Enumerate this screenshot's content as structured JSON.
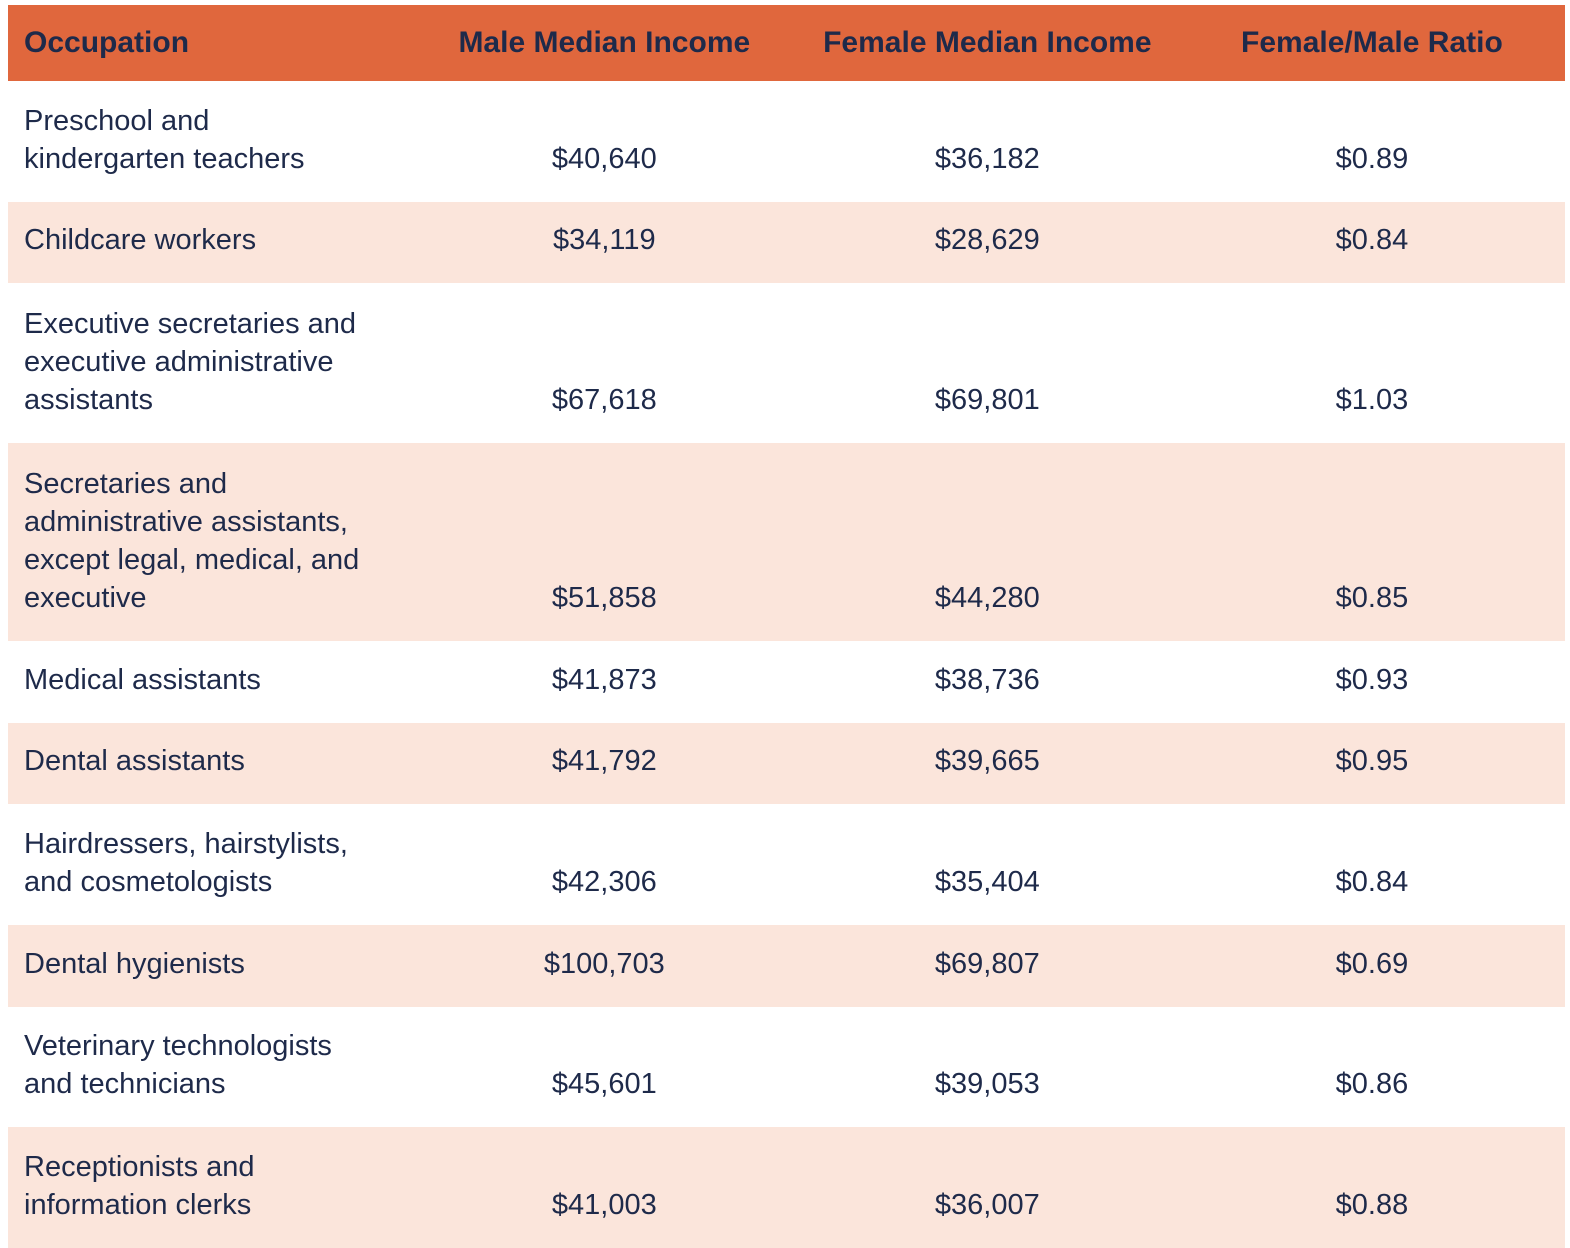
{
  "colors": {
    "header_bg": "#E0673D",
    "row_bg": "#FFFFFF",
    "row_alt_bg": "#FBE5DB",
    "text": "#1E2A4A"
  },
  "chart_data": {
    "type": "table",
    "columns": [
      "Occupation",
      "Male Median Income",
      "Female Median Income",
      "Female/Male Ratio"
    ],
    "rows": [
      {
        "occupation": "Preschool and\nkindergarten teachers",
        "male_median_income": "$40,640",
        "female_median_income": "$36,182",
        "female_male_ratio": "$0.89"
      },
      {
        "occupation": "Childcare workers",
        "male_median_income": "$34,119",
        "female_median_income": "$28,629",
        "female_male_ratio": "$0.84"
      },
      {
        "occupation": "Executive secretaries and\nexecutive administrative\nassistants",
        "male_median_income": "$67,618",
        "female_median_income": "$69,801",
        "female_male_ratio": "$1.03"
      },
      {
        "occupation": "Secretaries and\nadministrative assistants,\nexcept legal, medical, and\nexecutive",
        "male_median_income": "$51,858",
        "female_median_income": "$44,280",
        "female_male_ratio": "$0.85"
      },
      {
        "occupation": "Medical assistants",
        "male_median_income": "$41,873",
        "female_median_income": "$38,736",
        "female_male_ratio": "$0.93"
      },
      {
        "occupation": "Dental assistants",
        "male_median_income": "$41,792",
        "female_median_income": "$39,665",
        "female_male_ratio": "$0.95"
      },
      {
        "occupation": "Hairdressers, hairstylists,\nand cosmetologists",
        "male_median_income": "$42,306",
        "female_median_income": "$35,404",
        "female_male_ratio": "$0.84"
      },
      {
        "occupation": "Dental hygienists",
        "male_median_income": "$100,703",
        "female_median_income": "$69,807",
        "female_male_ratio": "$0.69"
      },
      {
        "occupation": "Veterinary technologists\nand technicians",
        "male_median_income": "$45,601",
        "female_median_income": "$39,053",
        "female_male_ratio": "$0.86"
      },
      {
        "occupation": "Receptionists and\ninformation clerks",
        "male_median_income": "$41,003",
        "female_median_income": "$36,007",
        "female_male_ratio": "$0.88"
      }
    ]
  }
}
